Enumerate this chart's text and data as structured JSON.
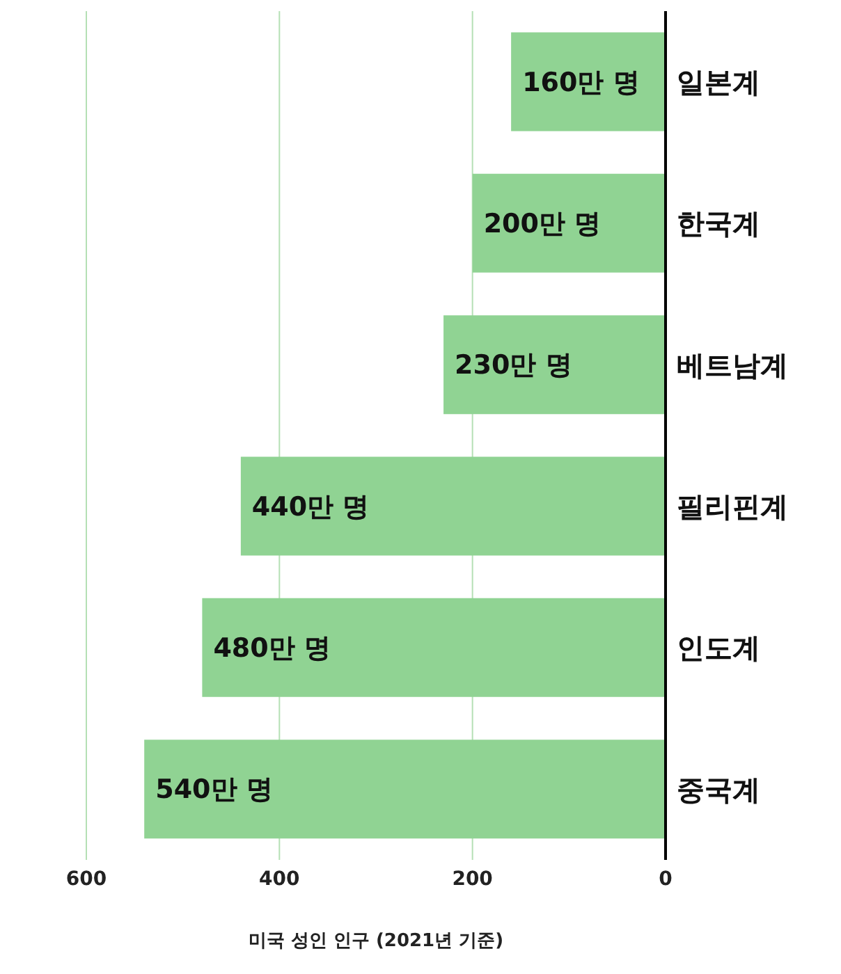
{
  "chart_data": {
    "type": "bar",
    "orientation": "horizontal",
    "xlabel": "미국 성인 인구 (2021년 기준)",
    "categories": [
      "일본계",
      "한국계",
      "베트남계",
      "필리핀계",
      "인도계",
      "중국계"
    ],
    "values": [
      160,
      200,
      230,
      440,
      480,
      540
    ],
    "value_labels": [
      "160만 명",
      "200만 명",
      "230만 명",
      "440만 명",
      "480만 명",
      "540만 명"
    ],
    "color": "#90d393",
    "xlim": [
      600,
      0
    ],
    "xticks": [
      600,
      400,
      200,
      0
    ],
    "grid": "x"
  }
}
